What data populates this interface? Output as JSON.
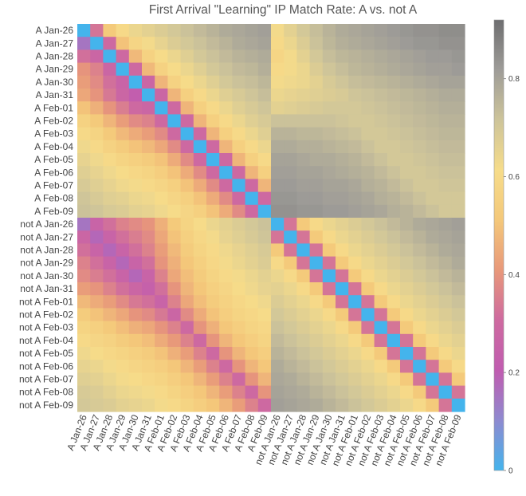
{
  "chart_data": {
    "type": "heatmap",
    "title": "First Arrival \"Learning\" IP Match Rate: A vs. not A",
    "rows": [
      "A Jan-26",
      "A Jan-27",
      "A Jan-28",
      "A Jan-29",
      "A Jan-30",
      "A Jan-31",
      "A Feb-01",
      "A Feb-02",
      "A Feb-03",
      "A Feb-04",
      "A Feb-05",
      "A Feb-06",
      "A Feb-07",
      "A Feb-08",
      "A Feb-09",
      "not A Jan-26",
      "not A Jan-27",
      "not A Jan-28",
      "not A Jan-29",
      "not A Jan-30",
      "not A Jan-31",
      "not A Feb-01",
      "not A Feb-02",
      "not A Feb-03",
      "not A Feb-04",
      "not A Feb-05",
      "not A Feb-06",
      "not A Feb-07",
      "not A Feb-08",
      "not A Feb-09"
    ],
    "columns": [
      "A Jan-26",
      "A Jan-27",
      "A Jan-28",
      "A Jan-29",
      "A Jan-30",
      "A Jan-31",
      "A Feb-01",
      "A Feb-02",
      "A Feb-03",
      "A Feb-04",
      "A Feb-05",
      "A Feb-06",
      "A Feb-07",
      "A Feb-08",
      "A Feb-09",
      "not A Jan-26",
      "not A Jan-27",
      "not A Jan-28",
      "not A Jan-29",
      "not A Jan-30",
      "not A Jan-31",
      "not A Feb-01",
      "not A Feb-02",
      "not A Feb-03",
      "not A Feb-04",
      "not A Feb-05",
      "not A Feb-06",
      "not A Feb-07",
      "not A Feb-08",
      "not A Feb-09"
    ],
    "values": [
      [
        0.0,
        0.33,
        0.52,
        0.6,
        0.64,
        0.66,
        0.68,
        0.7,
        0.72,
        0.74,
        0.76,
        0.78,
        0.79,
        0.8,
        0.81,
        0.62,
        0.66,
        0.7,
        0.73,
        0.76,
        0.78,
        0.79,
        0.8,
        0.81,
        0.82,
        0.83,
        0.84,
        0.84,
        0.85,
        0.85
      ],
      [
        0.15,
        0.0,
        0.3,
        0.5,
        0.58,
        0.62,
        0.65,
        0.68,
        0.7,
        0.72,
        0.74,
        0.76,
        0.78,
        0.79,
        0.8,
        0.6,
        0.64,
        0.68,
        0.72,
        0.75,
        0.77,
        0.78,
        0.79,
        0.8,
        0.81,
        0.82,
        0.83,
        0.83,
        0.84,
        0.84
      ],
      [
        0.32,
        0.28,
        0.0,
        0.3,
        0.48,
        0.56,
        0.61,
        0.64,
        0.67,
        0.7,
        0.72,
        0.74,
        0.76,
        0.77,
        0.78,
        0.58,
        0.62,
        0.66,
        0.7,
        0.73,
        0.75,
        0.76,
        0.77,
        0.78,
        0.79,
        0.8,
        0.81,
        0.82,
        0.82,
        0.83
      ],
      [
        0.4,
        0.36,
        0.28,
        0.0,
        0.3,
        0.48,
        0.56,
        0.61,
        0.64,
        0.67,
        0.7,
        0.72,
        0.74,
        0.75,
        0.77,
        0.6,
        0.62,
        0.64,
        0.68,
        0.71,
        0.73,
        0.75,
        0.76,
        0.77,
        0.78,
        0.79,
        0.8,
        0.81,
        0.81,
        0.82
      ],
      [
        0.42,
        0.38,
        0.32,
        0.26,
        0.0,
        0.28,
        0.47,
        0.56,
        0.61,
        0.64,
        0.67,
        0.7,
        0.72,
        0.73,
        0.75,
        0.62,
        0.63,
        0.64,
        0.66,
        0.69,
        0.71,
        0.73,
        0.74,
        0.75,
        0.76,
        0.77,
        0.78,
        0.79,
        0.8,
        0.8
      ],
      [
        0.44,
        0.4,
        0.34,
        0.28,
        0.22,
        0.0,
        0.28,
        0.47,
        0.55,
        0.6,
        0.64,
        0.67,
        0.69,
        0.71,
        0.73,
        0.64,
        0.65,
        0.66,
        0.67,
        0.68,
        0.69,
        0.71,
        0.72,
        0.73,
        0.74,
        0.75,
        0.76,
        0.77,
        0.78,
        0.78
      ],
      [
        0.5,
        0.46,
        0.4,
        0.35,
        0.3,
        0.28,
        0.0,
        0.3,
        0.47,
        0.55,
        0.6,
        0.64,
        0.67,
        0.69,
        0.71,
        0.66,
        0.67,
        0.68,
        0.69,
        0.7,
        0.7,
        0.7,
        0.71,
        0.72,
        0.73,
        0.74,
        0.75,
        0.76,
        0.77,
        0.77
      ],
      [
        0.56,
        0.52,
        0.47,
        0.42,
        0.38,
        0.36,
        0.3,
        0.0,
        0.3,
        0.47,
        0.55,
        0.6,
        0.64,
        0.67,
        0.69,
        0.72,
        0.72,
        0.72,
        0.72,
        0.72,
        0.71,
        0.7,
        0.7,
        0.71,
        0.72,
        0.73,
        0.74,
        0.75,
        0.76,
        0.76
      ],
      [
        0.6,
        0.57,
        0.52,
        0.48,
        0.45,
        0.42,
        0.38,
        0.3,
        0.0,
        0.3,
        0.47,
        0.55,
        0.6,
        0.64,
        0.67,
        0.76,
        0.76,
        0.75,
        0.75,
        0.74,
        0.73,
        0.72,
        0.7,
        0.7,
        0.71,
        0.72,
        0.73,
        0.74,
        0.75,
        0.75
      ],
      [
        0.63,
        0.6,
        0.56,
        0.53,
        0.5,
        0.48,
        0.44,
        0.38,
        0.3,
        0.0,
        0.3,
        0.47,
        0.55,
        0.6,
        0.64,
        0.78,
        0.78,
        0.77,
        0.77,
        0.76,
        0.75,
        0.74,
        0.72,
        0.7,
        0.7,
        0.71,
        0.72,
        0.73,
        0.74,
        0.74
      ],
      [
        0.65,
        0.63,
        0.6,
        0.57,
        0.55,
        0.53,
        0.5,
        0.45,
        0.38,
        0.3,
        0.0,
        0.3,
        0.47,
        0.55,
        0.6,
        0.8,
        0.8,
        0.79,
        0.78,
        0.78,
        0.77,
        0.76,
        0.74,
        0.72,
        0.7,
        0.7,
        0.71,
        0.72,
        0.73,
        0.73
      ],
      [
        0.67,
        0.65,
        0.63,
        0.61,
        0.59,
        0.57,
        0.54,
        0.5,
        0.45,
        0.38,
        0.3,
        0.0,
        0.3,
        0.47,
        0.55,
        0.81,
        0.81,
        0.8,
        0.8,
        0.79,
        0.78,
        0.77,
        0.76,
        0.74,
        0.72,
        0.7,
        0.7,
        0.71,
        0.72,
        0.72
      ],
      [
        0.69,
        0.67,
        0.65,
        0.63,
        0.62,
        0.6,
        0.58,
        0.55,
        0.5,
        0.45,
        0.38,
        0.3,
        0.0,
        0.3,
        0.47,
        0.82,
        0.82,
        0.81,
        0.81,
        0.8,
        0.8,
        0.79,
        0.77,
        0.76,
        0.74,
        0.72,
        0.7,
        0.7,
        0.71,
        0.71
      ],
      [
        0.71,
        0.69,
        0.67,
        0.66,
        0.64,
        0.63,
        0.61,
        0.58,
        0.55,
        0.5,
        0.45,
        0.38,
        0.3,
        0.0,
        0.3,
        0.83,
        0.83,
        0.82,
        0.82,
        0.81,
        0.81,
        0.8,
        0.79,
        0.77,
        0.76,
        0.74,
        0.72,
        0.7,
        0.7,
        0.7
      ],
      [
        0.72,
        0.71,
        0.69,
        0.68,
        0.66,
        0.65,
        0.63,
        0.61,
        0.58,
        0.55,
        0.5,
        0.45,
        0.38,
        0.3,
        0.0,
        0.84,
        0.84,
        0.83,
        0.83,
        0.82,
        0.82,
        0.81,
        0.8,
        0.79,
        0.77,
        0.76,
        0.74,
        0.72,
        0.7,
        0.7
      ],
      [
        0.15,
        0.26,
        0.32,
        0.36,
        0.38,
        0.4,
        0.46,
        0.52,
        0.57,
        0.61,
        0.64,
        0.66,
        0.68,
        0.7,
        0.72,
        0.0,
        0.33,
        0.52,
        0.6,
        0.64,
        0.66,
        0.68,
        0.7,
        0.72,
        0.74,
        0.76,
        0.78,
        0.79,
        0.8,
        0.81
      ],
      [
        0.28,
        0.18,
        0.26,
        0.32,
        0.35,
        0.38,
        0.44,
        0.5,
        0.55,
        0.59,
        0.62,
        0.65,
        0.67,
        0.69,
        0.71,
        0.33,
        0.0,
        0.33,
        0.52,
        0.6,
        0.64,
        0.66,
        0.68,
        0.7,
        0.72,
        0.74,
        0.76,
        0.78,
        0.79,
        0.8
      ],
      [
        0.32,
        0.26,
        0.18,
        0.26,
        0.32,
        0.36,
        0.42,
        0.48,
        0.53,
        0.57,
        0.6,
        0.63,
        0.65,
        0.67,
        0.69,
        0.52,
        0.33,
        0.0,
        0.33,
        0.52,
        0.6,
        0.64,
        0.66,
        0.68,
        0.7,
        0.72,
        0.74,
        0.76,
        0.78,
        0.79
      ],
      [
        0.36,
        0.32,
        0.26,
        0.18,
        0.26,
        0.32,
        0.4,
        0.46,
        0.51,
        0.55,
        0.59,
        0.62,
        0.64,
        0.66,
        0.68,
        0.6,
        0.52,
        0.33,
        0.0,
        0.33,
        0.52,
        0.6,
        0.64,
        0.66,
        0.68,
        0.7,
        0.72,
        0.74,
        0.76,
        0.78
      ],
      [
        0.38,
        0.35,
        0.32,
        0.26,
        0.18,
        0.26,
        0.36,
        0.44,
        0.49,
        0.53,
        0.57,
        0.6,
        0.62,
        0.64,
        0.66,
        0.64,
        0.6,
        0.52,
        0.33,
        0.0,
        0.33,
        0.52,
        0.6,
        0.64,
        0.66,
        0.68,
        0.7,
        0.72,
        0.74,
        0.76
      ],
      [
        0.42,
        0.4,
        0.36,
        0.32,
        0.28,
        0.24,
        0.32,
        0.4,
        0.47,
        0.51,
        0.55,
        0.58,
        0.61,
        0.63,
        0.65,
        0.66,
        0.64,
        0.6,
        0.52,
        0.33,
        0.0,
        0.33,
        0.52,
        0.6,
        0.64,
        0.66,
        0.68,
        0.7,
        0.72,
        0.74
      ],
      [
        0.48,
        0.45,
        0.42,
        0.38,
        0.34,
        0.32,
        0.26,
        0.36,
        0.44,
        0.49,
        0.53,
        0.56,
        0.59,
        0.61,
        0.63,
        0.68,
        0.66,
        0.64,
        0.6,
        0.52,
        0.33,
        0.0,
        0.33,
        0.52,
        0.6,
        0.64,
        0.66,
        0.68,
        0.7,
        0.72
      ],
      [
        0.53,
        0.5,
        0.47,
        0.44,
        0.4,
        0.38,
        0.34,
        0.28,
        0.38,
        0.45,
        0.5,
        0.54,
        0.57,
        0.59,
        0.61,
        0.7,
        0.68,
        0.66,
        0.64,
        0.6,
        0.52,
        0.33,
        0.0,
        0.33,
        0.52,
        0.6,
        0.64,
        0.66,
        0.68,
        0.7
      ],
      [
        0.57,
        0.55,
        0.52,
        0.49,
        0.46,
        0.44,
        0.4,
        0.36,
        0.3,
        0.4,
        0.46,
        0.51,
        0.54,
        0.57,
        0.59,
        0.72,
        0.7,
        0.68,
        0.66,
        0.64,
        0.6,
        0.52,
        0.33,
        0.0,
        0.33,
        0.52,
        0.6,
        0.64,
        0.66,
        0.68
      ],
      [
        0.6,
        0.58,
        0.56,
        0.53,
        0.51,
        0.49,
        0.45,
        0.41,
        0.36,
        0.3,
        0.4,
        0.47,
        0.51,
        0.54,
        0.57,
        0.74,
        0.72,
        0.7,
        0.68,
        0.66,
        0.64,
        0.6,
        0.52,
        0.33,
        0.0,
        0.33,
        0.52,
        0.6,
        0.64,
        0.66
      ],
      [
        0.63,
        0.61,
        0.59,
        0.57,
        0.55,
        0.53,
        0.5,
        0.46,
        0.42,
        0.36,
        0.3,
        0.4,
        0.47,
        0.51,
        0.54,
        0.76,
        0.74,
        0.72,
        0.7,
        0.68,
        0.66,
        0.64,
        0.6,
        0.52,
        0.33,
        0.0,
        0.33,
        0.52,
        0.6,
        0.64
      ],
      [
        0.65,
        0.64,
        0.62,
        0.6,
        0.58,
        0.56,
        0.54,
        0.51,
        0.47,
        0.42,
        0.36,
        0.3,
        0.4,
        0.47,
        0.51,
        0.78,
        0.76,
        0.74,
        0.72,
        0.7,
        0.68,
        0.66,
        0.64,
        0.6,
        0.52,
        0.33,
        0.0,
        0.33,
        0.52,
        0.6
      ],
      [
        0.67,
        0.66,
        0.64,
        0.62,
        0.61,
        0.59,
        0.57,
        0.54,
        0.51,
        0.47,
        0.42,
        0.36,
        0.3,
        0.4,
        0.47,
        0.79,
        0.78,
        0.76,
        0.74,
        0.72,
        0.7,
        0.68,
        0.66,
        0.64,
        0.6,
        0.52,
        0.33,
        0.0,
        0.33,
        0.52
      ],
      [
        0.69,
        0.68,
        0.66,
        0.64,
        0.63,
        0.62,
        0.6,
        0.57,
        0.54,
        0.51,
        0.47,
        0.42,
        0.36,
        0.3,
        0.4,
        0.8,
        0.79,
        0.78,
        0.76,
        0.74,
        0.72,
        0.7,
        0.68,
        0.66,
        0.64,
        0.6,
        0.52,
        0.33,
        0.0,
        0.33
      ],
      [
        0.7,
        0.69,
        0.68,
        0.66,
        0.65,
        0.64,
        0.62,
        0.6,
        0.57,
        0.54,
        0.51,
        0.47,
        0.42,
        0.36,
        0.3,
        0.81,
        0.8,
        0.79,
        0.78,
        0.76,
        0.74,
        0.72,
        0.7,
        0.68,
        0.66,
        0.64,
        0.6,
        0.52,
        0.33,
        0.0
      ]
    ],
    "value_range": [
      0,
      0.92
    ],
    "colorbar_ticks": [
      "0",
      "0.2",
      "0.4",
      "0.6",
      "0.8"
    ],
    "colorbar_tick_values": [
      0,
      0.2,
      0.4,
      0.6,
      0.8
    ],
    "colormap": [
      "#44b4ec",
      "#8e8ad0",
      "#c05cb0",
      "#ce6aa0",
      "#e8987a",
      "#f4c87a",
      "#f6dc8a",
      "#cdc49a",
      "#9e9c98",
      "#6e6e70"
    ]
  }
}
